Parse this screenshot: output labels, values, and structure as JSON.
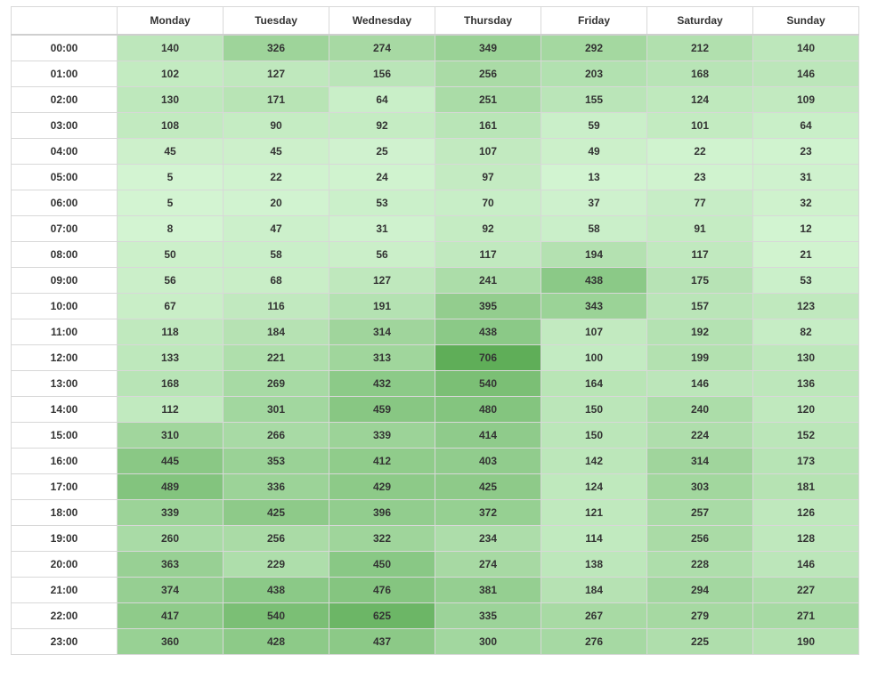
{
  "chart_data": {
    "type": "heatmap",
    "title": "",
    "xlabel": "",
    "ylabel": "",
    "columns": [
      "Monday",
      "Tuesday",
      "Wednesday",
      "Thursday",
      "Friday",
      "Saturday",
      "Sunday"
    ],
    "rows": [
      "00:00",
      "01:00",
      "02:00",
      "03:00",
      "04:00",
      "05:00",
      "06:00",
      "07:00",
      "08:00",
      "09:00",
      "10:00",
      "11:00",
      "12:00",
      "13:00",
      "14:00",
      "15:00",
      "16:00",
      "17:00",
      "18:00",
      "19:00",
      "20:00",
      "21:00",
      "22:00",
      "23:00"
    ],
    "values": [
      [
        140,
        326,
        274,
        349,
        292,
        212,
        140
      ],
      [
        102,
        127,
        156,
        256,
        203,
        168,
        146
      ],
      [
        130,
        171,
        64,
        251,
        155,
        124,
        109
      ],
      [
        108,
        90,
        92,
        161,
        59,
        101,
        64
      ],
      [
        45,
        45,
        25,
        107,
        49,
        22,
        23
      ],
      [
        5,
        22,
        24,
        97,
        13,
        23,
        31
      ],
      [
        5,
        20,
        53,
        70,
        37,
        77,
        32
      ],
      [
        8,
        47,
        31,
        92,
        58,
        91,
        12
      ],
      [
        50,
        58,
        56,
        117,
        194,
        117,
        21
      ],
      [
        56,
        68,
        127,
        241,
        438,
        175,
        53
      ],
      [
        67,
        116,
        191,
        395,
        343,
        157,
        123
      ],
      [
        118,
        184,
        314,
        438,
        107,
        192,
        82
      ],
      [
        133,
        221,
        313,
        706,
        100,
        199,
        130
      ],
      [
        168,
        269,
        432,
        540,
        164,
        146,
        136
      ],
      [
        112,
        301,
        459,
        480,
        150,
        240,
        120
      ],
      [
        310,
        266,
        339,
        414,
        150,
        224,
        152
      ],
      [
        445,
        353,
        412,
        403,
        142,
        314,
        173
      ],
      [
        489,
        336,
        429,
        425,
        124,
        303,
        181
      ],
      [
        339,
        425,
        396,
        372,
        121,
        257,
        126
      ],
      [
        260,
        256,
        322,
        234,
        114,
        256,
        128
      ],
      [
        363,
        229,
        450,
        274,
        138,
        228,
        146
      ],
      [
        374,
        438,
        476,
        381,
        184,
        294,
        227
      ],
      [
        417,
        540,
        625,
        335,
        267,
        279,
        271
      ],
      [
        360,
        428,
        437,
        300,
        276,
        225,
        190
      ]
    ],
    "color_scale": {
      "low": "#d4f5d3",
      "high": "#5fae58"
    },
    "value_range": [
      0,
      706
    ],
    "grid": true
  }
}
